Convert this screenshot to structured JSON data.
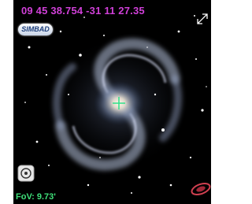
{
  "viewer": {
    "coordinates": "09 45 38.754 -31 11 27.35",
    "logo": "SIMBAD",
    "fov": "FoV: 9.73'"
  }
}
